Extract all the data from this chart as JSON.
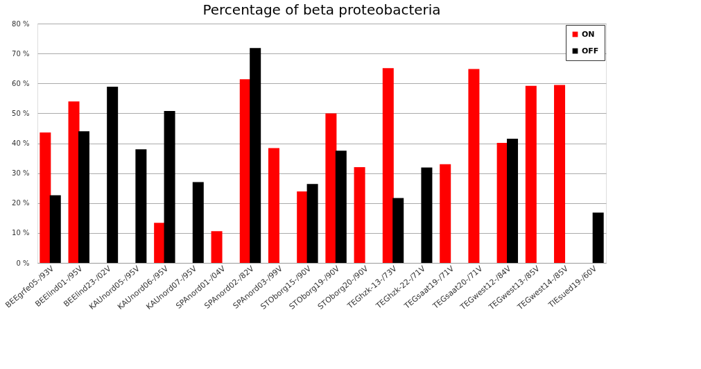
{
  "chart_data": {
    "type": "bar",
    "title": "Percentage of beta proteobacteria",
    "categories": [
      "BEEgrfe05-/93V",
      "BEElind01-/95V",
      "BEElind23-/02V",
      "KAUnord05-/95V",
      "KAUnord06-/95V",
      "KAUnord07-/95V",
      "SPAnord01-/04V",
      "SPAnord02-/82V",
      "SPAnord03-/99V",
      "STOborg15-/90V",
      "STOborg19-/90V",
      "STOborg20-/90V",
      "TEGhzk-13-/73V",
      "TEGhzk-22-/71V",
      "TEGsaat19-/71V",
      "TEGsaat20-/71V",
      "TEGwest12-/84V",
      "TEGwest13-/85V",
      "TEGwest14-/85V",
      "TIEsued19-/60V"
    ],
    "series": [
      {
        "name": "ON",
        "color": "#ff0000",
        "values": [
          43.6,
          54,
          null,
          null,
          13.4,
          null,
          10.6,
          61.4,
          38.4,
          23.9,
          50,
          32,
          65.1,
          null,
          33,
          64.8,
          40.1,
          59.2,
          59.5,
          null
        ]
      },
      {
        "name": "OFF",
        "color": "#000000",
        "values": [
          22.6,
          44,
          58.9,
          38,
          50.8,
          27,
          null,
          71.8,
          null,
          26.4,
          37.5,
          null,
          21.7,
          31.9,
          null,
          null,
          41.5,
          null,
          null,
          16.8
        ]
      }
    ],
    "ylim": [
      0,
      80
    ],
    "yticks": [
      {
        "value": 0,
        "label": "0 %"
      },
      {
        "value": 10,
        "label": "10 %"
      },
      {
        "value": 20,
        "label": "20 %"
      },
      {
        "value": 30,
        "label": "30 %"
      },
      {
        "value": 40,
        "label": "40 %"
      },
      {
        "value": 50,
        "label": "50 %"
      },
      {
        "value": 60,
        "label": "60 %"
      },
      {
        "value": 70,
        "label": "70 %"
      },
      {
        "value": 80,
        "label": "80 %"
      }
    ],
    "grid": "y",
    "legend": "top right"
  }
}
